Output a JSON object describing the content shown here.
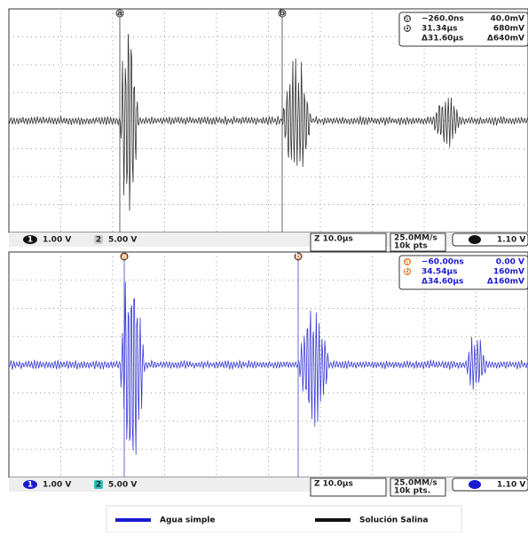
{
  "panels": [
    {
      "cursor_a": "a",
      "cursor_b": "b",
      "readout": [
        {
          "marker": "a",
          "time": "−260.0ns",
          "value": "40.0mV"
        },
        {
          "marker": "b",
          "time": "31.34μs",
          "value": "680mV"
        },
        {
          "time": "Δ31.60μs",
          "value": "Δ640mV"
        }
      ],
      "status": {
        "ch1": "1",
        "ch1_scale": "1.00 V",
        "ch2": "2",
        "ch2_scale": "5.00 V",
        "timebase": "Z 10.0μs",
        "rate": "25.0MM/s",
        "points": "10k pts",
        "trigger": "1.10 V"
      }
    },
    {
      "cursor_a": "a",
      "cursor_b": "b",
      "readout": [
        {
          "marker": "a",
          "time": "−60.00ns",
          "value": "0.00 V"
        },
        {
          "marker": "b",
          "time": "34.54μs",
          "value": "160mV"
        },
        {
          "time": "Δ34.60μs",
          "value": "Δ160mV"
        }
      ],
      "status": {
        "ch1": "1",
        "ch1_scale": "1.00 V",
        "ch2": "2",
        "ch2_scale": "5.00 V",
        "timebase": "Z 10.0μs",
        "rate": "25.0MM/s",
        "points": "10k pts.",
        "trigger": "1.10 V"
      }
    }
  ],
  "legend": [
    {
      "label": "Agua simple"
    },
    {
      "label": "Solución Salina"
    }
  ]
}
